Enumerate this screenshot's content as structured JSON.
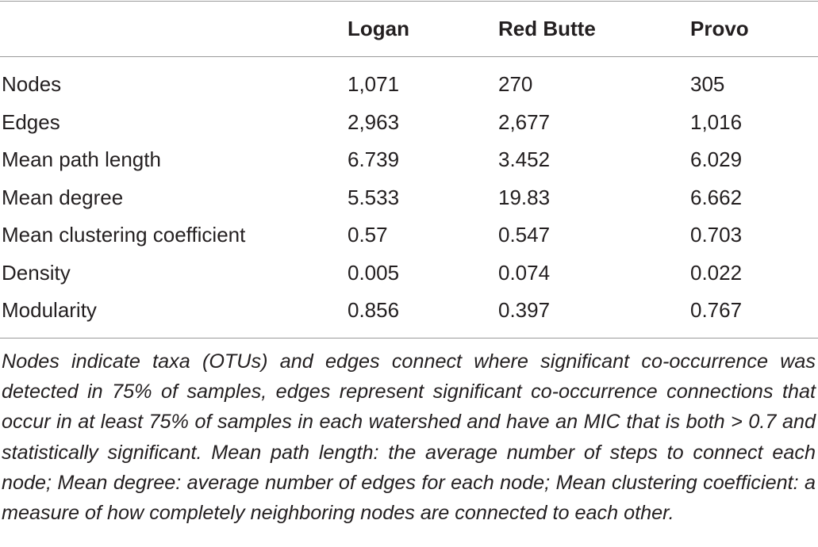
{
  "table": {
    "columns": [
      "Logan",
      "Red Butte",
      "Provo"
    ],
    "rows": [
      [
        "Nodes",
        "1,071",
        "270",
        "305"
      ],
      [
        "Edges",
        "2,963",
        "2,677",
        "1,016"
      ],
      [
        "Mean path length",
        "6.739",
        "3.452",
        "6.029"
      ],
      [
        "Mean degree",
        "5.533",
        "19.83",
        "6.662"
      ],
      [
        "Mean clustering coefficient",
        "0.57",
        "0.547",
        "0.703"
      ],
      [
        "Density",
        "0.005",
        "0.074",
        "0.022"
      ],
      [
        "Modularity",
        "0.856",
        "0.397",
        "0.767"
      ]
    ],
    "footnote": "Nodes indicate taxa (OTUs) and edges connect where significant co-occurrence was detected in 75% of samples, edges represent significant co-occurrence connections that occur in at least 75% of samples in each watershed and have an MIC that is both > 0.7 and statistically significant. Mean path length: the average number of steps to connect each node; Mean degree: average number of edges for each node; Mean clustering coefficient: a measure of how completely neighboring nodes are connected to each other."
  }
}
